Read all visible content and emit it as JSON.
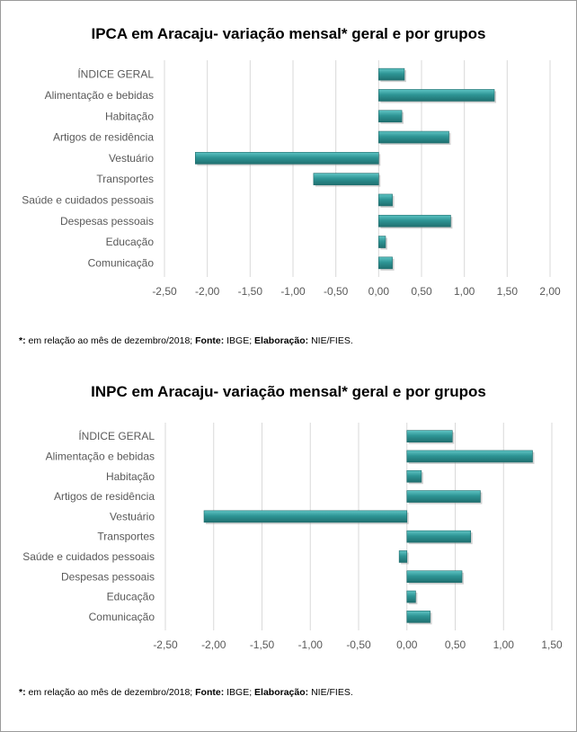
{
  "chart_data": [
    {
      "type": "bar",
      "orientation": "horizontal",
      "title": "IPCA em Aracaju- variação mensal* geral e por grupos",
      "categories": [
        "ÍNDICE GERAL",
        "Alimentação e bebidas",
        "Habitação",
        "Artigos de residência",
        "Vestuário",
        "Transportes",
        "Saúde e cuidados pessoais",
        "Despesas pessoais",
        "Educação",
        "Comunicação"
      ],
      "values": [
        0.3,
        1.35,
        0.27,
        0.82,
        -2.14,
        -0.76,
        0.16,
        0.84,
        0.08,
        0.16
      ],
      "xlim": [
        -2.5,
        2.0
      ],
      "ticks": [
        "-2,50",
        "-2,00",
        "-1,50",
        "-1,00",
        "-0,50",
        "0,00",
        "0,50",
        "1,00",
        "1,50",
        "2,00"
      ],
      "tick_values": [
        -2.5,
        -2.0,
        -1.5,
        -1.0,
        -0.5,
        0.0,
        0.5,
        1.0,
        1.5,
        2.0
      ],
      "grid": true,
      "bar_color": "#2e9595",
      "footnote": {
        "marker": "*:",
        "text1": " em relação ao mês de dezembro/2018; ",
        "source_label": "Fonte:",
        "source": " IBGE; ",
        "credit_label": "Elaboração:",
        "credit": " NIE/FIES."
      }
    },
    {
      "type": "bar",
      "orientation": "horizontal",
      "title": "INPC em Aracaju- variação mensal* geral e por grupos",
      "categories": [
        "ÍNDICE GERAL",
        "Alimentação e bebidas",
        "Habitação",
        "Artigos de residência",
        "Vestuário",
        "Transportes",
        "Saúde e cuidados pessoais",
        "Despesas pessoais",
        "Educação",
        "Comunicação"
      ],
      "values": [
        0.47,
        1.3,
        0.15,
        0.76,
        -2.1,
        0.66,
        -0.08,
        0.57,
        0.09,
        0.24
      ],
      "xlim": [
        -2.5,
        1.5
      ],
      "ticks": [
        "-2,50",
        "-2,00",
        "-1,50",
        "-1,00",
        "-0,50",
        "0,00",
        "0,50",
        "1,00",
        "1,50"
      ],
      "tick_values": [
        -2.5,
        -2.0,
        -1.5,
        -1.0,
        -0.5,
        0.0,
        0.5,
        1.0,
        1.5
      ],
      "grid": true,
      "bar_color": "#2e9595",
      "footnote": {
        "marker": "*:",
        "text1": " em relação ao mês de dezembro/2018; ",
        "source_label": "Fonte:",
        "source": " IBGE; ",
        "credit_label": "Elaboração:",
        "credit": " NIE/FIES."
      }
    }
  ]
}
